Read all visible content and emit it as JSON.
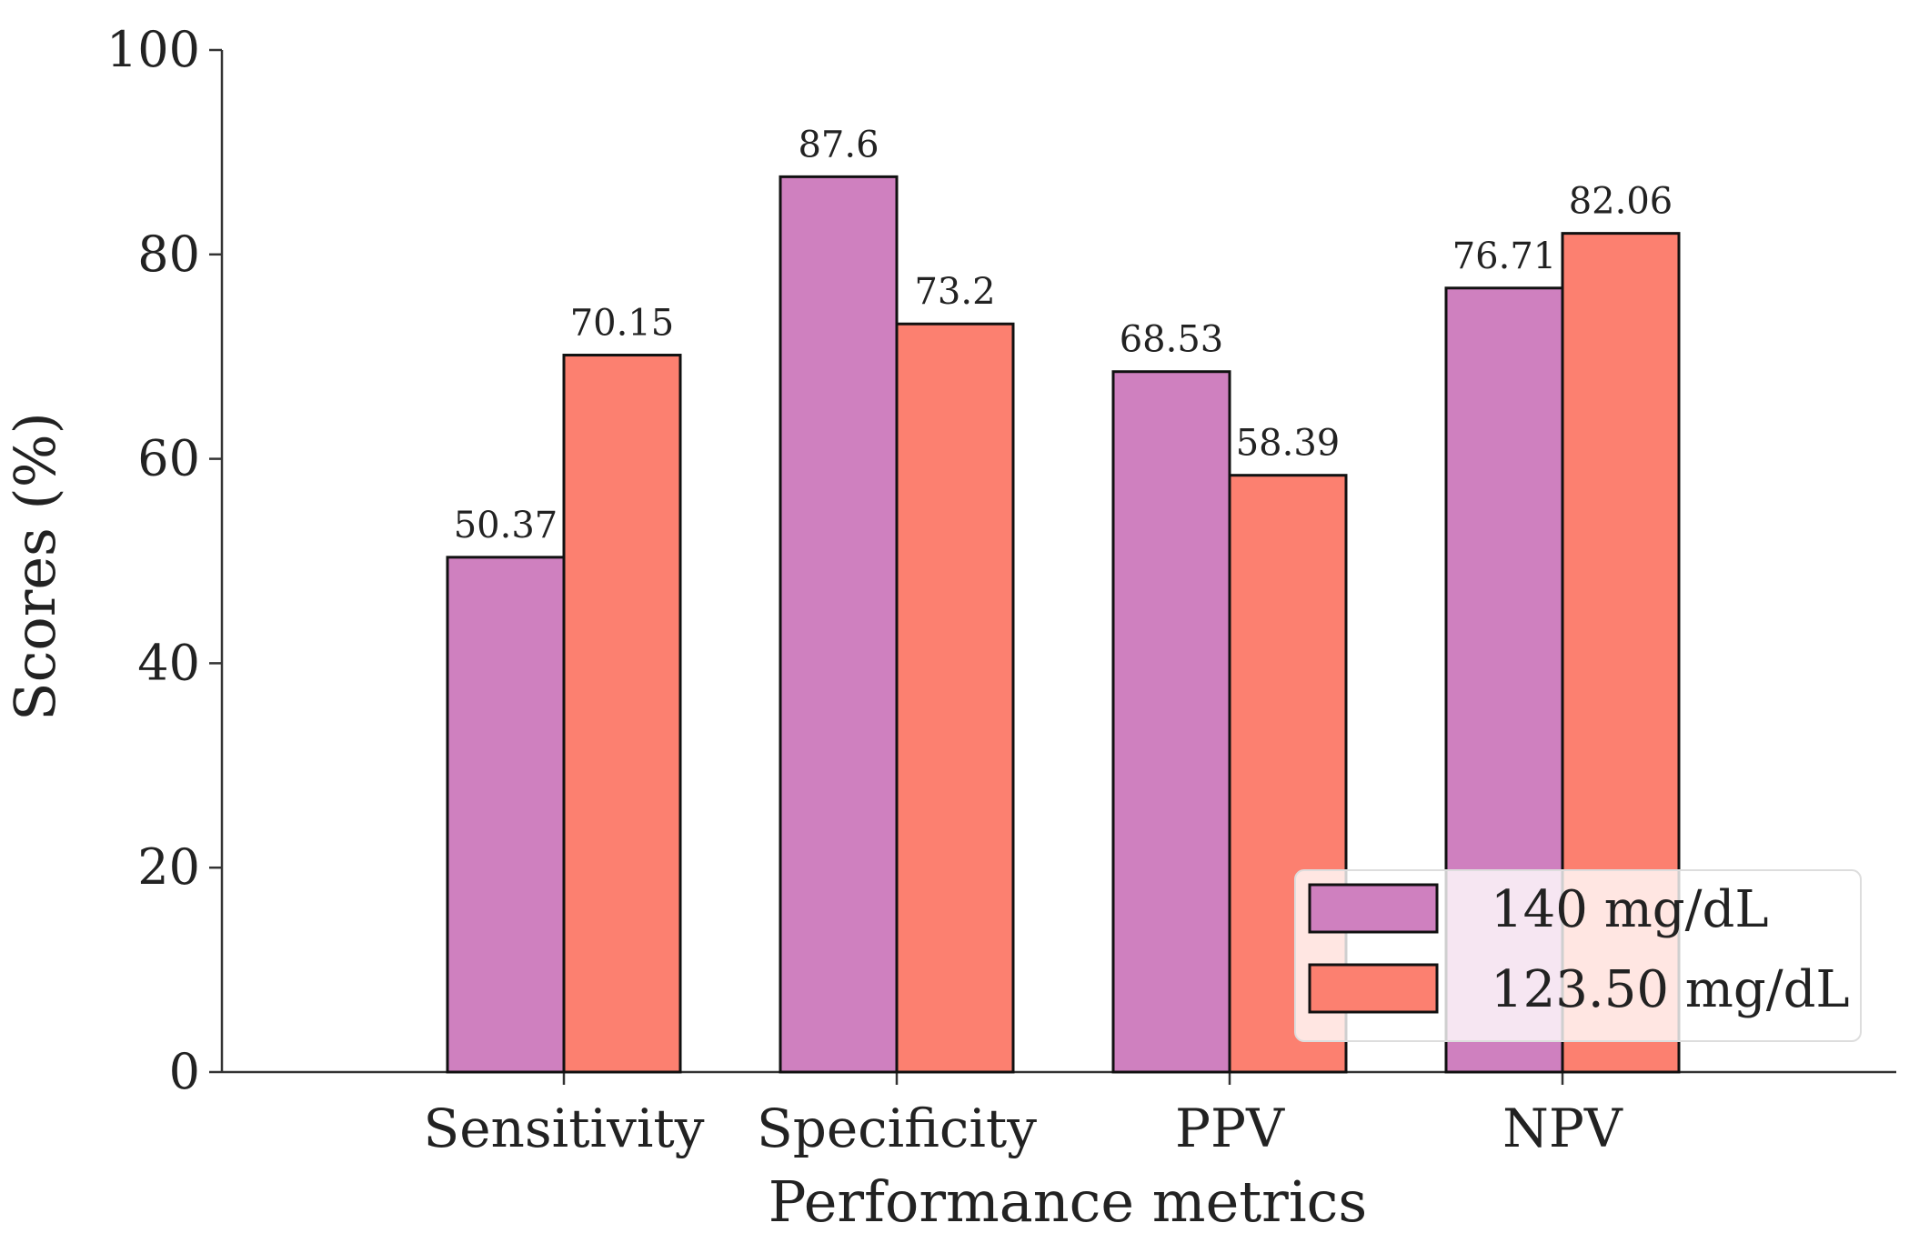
{
  "chart_data": {
    "type": "bar",
    "title": "",
    "xlabel": "Performance metrics",
    "ylabel": "Scores (%)",
    "ylim": [
      0,
      100
    ],
    "yticks": [
      0,
      20,
      40,
      60,
      80,
      100
    ],
    "categories": [
      "Sensitivity",
      "Specificity",
      "PPV",
      "NPV"
    ],
    "series": [
      {
        "name": "140 mg/dL",
        "color": "#CF80BF",
        "values": [
          50.37,
          87.6,
          68.53,
          76.71
        ],
        "labels": [
          "50.37",
          "87.6",
          "68.53",
          "76.71"
        ]
      },
      {
        "name": "123.50 mg/dL",
        "color": "#FC8070",
        "values": [
          70.15,
          73.2,
          58.39,
          82.06
        ],
        "labels": [
          "70.15",
          "73.2",
          "58.39",
          "82.06"
        ]
      }
    ],
    "legend": "bottom-right",
    "grid": false
  }
}
